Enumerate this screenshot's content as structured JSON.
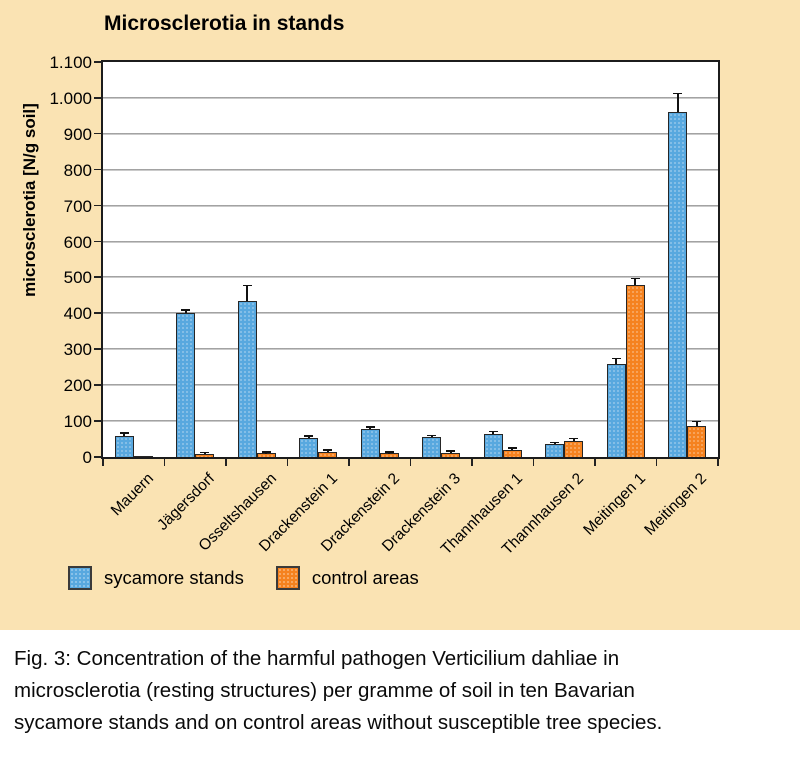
{
  "chart_data": {
    "type": "bar",
    "title": "Microsclerotia in stands",
    "xlabel": "",
    "ylabel": "microsclerotia [N/g soil]",
    "ylim": [
      0,
      1100
    ],
    "ytick_step": 100,
    "ytick_labels": [
      "0",
      "100",
      "200",
      "300",
      "400",
      "500",
      "600",
      "700",
      "800",
      "900",
      "1.000",
      "1.100"
    ],
    "grid": true,
    "legend_position": "bottom",
    "categories": [
      "Mauern",
      "Jägersdorf",
      "Osseltshausen",
      "Drackenstein 1",
      "Drackenstein 2",
      "Drackenstein 3",
      "Thannhausen 1",
      "Thannhausen 2",
      "Meitingen 1",
      "Meitingen 2"
    ],
    "series": [
      {
        "name": "sycamore stands",
        "color": "#58a8df",
        "values": [
          58,
          400,
          435,
          52,
          78,
          55,
          65,
          35,
          260,
          960
        ],
        "errors": [
          6,
          8,
          40,
          5,
          4,
          3,
          4,
          3,
          12,
          50
        ]
      },
      {
        "name": "control areas",
        "color": "#f5821f",
        "values": [
          2,
          8,
          10,
          15,
          10,
          12,
          20,
          45,
          480,
          85
        ],
        "errors": [
          0,
          2,
          2,
          3,
          2,
          2,
          3,
          4,
          15,
          12
        ]
      }
    ],
    "colors": {
      "panel_background": "#fae3b3",
      "plot_background": "#ffffff",
      "gridline": "#8f8f8f",
      "axis": "#1c1c1c"
    }
  },
  "caption": {
    "lines": [
      "Fig. 3: Concentration of the harmful pathogen Verticilium dahliae in",
      "microsclerotia (resting structures) per gramme of soil in ten Bavarian",
      "sycamore stands and on control areas without susceptible tree species."
    ]
  }
}
